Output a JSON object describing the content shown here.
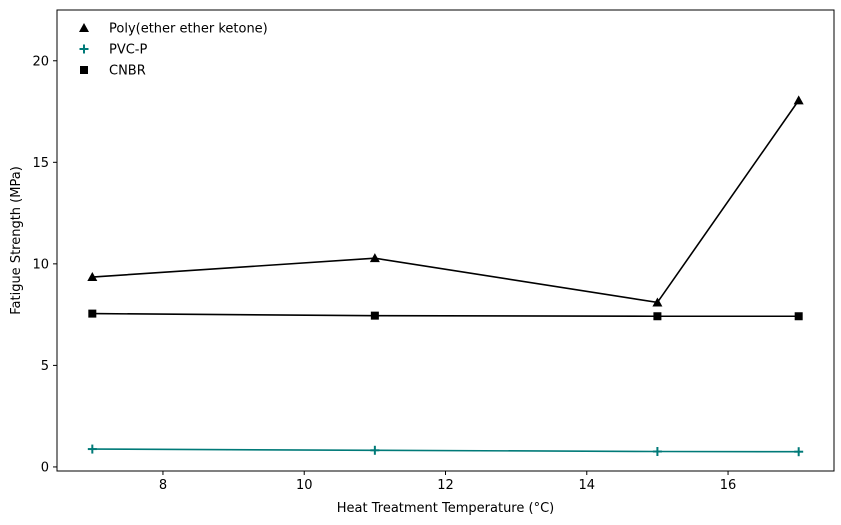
{
  "chart_data": {
    "type": "line",
    "title": "",
    "xlabel": "Heat Treatment Temperature (°C)",
    "ylabel": "Fatigue Strength (MPa)",
    "x": [
      7,
      11,
      15,
      17
    ],
    "xlim": [
      6.5,
      17.5
    ],
    "ylim": [
      -0.2,
      22.5
    ],
    "xticks": [
      8,
      10,
      12,
      14,
      16
    ],
    "yticks": [
      0,
      5,
      10,
      15,
      20
    ],
    "grid": false,
    "legend_position": "top-left",
    "series": [
      {
        "name": "Poly(ether ether ketone)",
        "values": [
          9.35,
          10.28,
          8.1,
          18.05
        ],
        "marker": "triangle",
        "color": "#000000"
      },
      {
        "name": "PVC-P",
        "values": [
          0.88,
          0.82,
          0.76,
          0.75
        ],
        "marker": "plus",
        "color": "#007a78"
      },
      {
        "name": "CNBR",
        "values": [
          7.55,
          7.45,
          7.42,
          7.42
        ],
        "marker": "square",
        "color": "#000000"
      }
    ]
  }
}
